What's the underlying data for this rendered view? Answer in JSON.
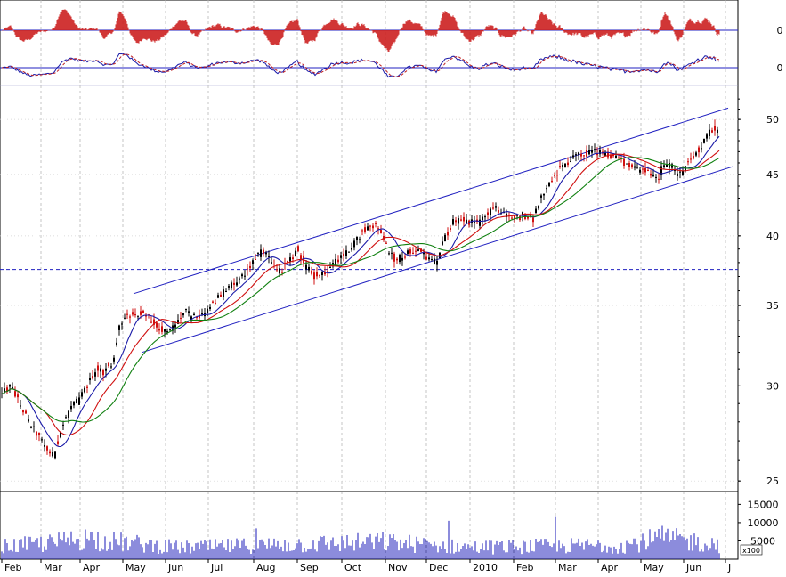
{
  "chart_data": {
    "type": "candlestick",
    "price_axis": {
      "scale": "log",
      "range": [
        24.5,
        53
      ],
      "ticks": [
        "50",
        "45",
        "40",
        "35",
        "30",
        "25"
      ]
    },
    "reference_line": 37.5,
    "osc1": {
      "zero_label": "0"
    },
    "osc2": {
      "zero_label": "0"
    },
    "volume_axis": {
      "range": [
        0,
        18500
      ],
      "ticks": [
        "15000",
        "10000",
        "5000"
      ],
      "unit": "x100"
    },
    "months": [
      {
        "label": "Feb",
        "t": 0
      },
      {
        "label": "Mar",
        "t": 44
      },
      {
        "label": "Apr",
        "t": 88
      },
      {
        "label": "May",
        "t": 136
      },
      {
        "label": "Jun",
        "t": 184
      },
      {
        "label": "Jul",
        "t": 232
      },
      {
        "label": "Aug",
        "t": 283
      },
      {
        "label": "Sep",
        "t": 332
      },
      {
        "label": "Oct",
        "t": 382
      },
      {
        "label": "Nov",
        "t": 431
      },
      {
        "label": "Dec",
        "t": 477
      },
      {
        "label": "2010",
        "t": 526
      },
      {
        "label": "Feb",
        "t": 575
      },
      {
        "label": "Mar",
        "t": 622
      },
      {
        "label": "Apr",
        "t": 670
      },
      {
        "label": "May",
        "t": 718
      },
      {
        "label": "Jun",
        "t": 766
      },
      {
        "label": "J",
        "t": 813
      }
    ],
    "price_keypoints": [
      [
        0,
        29.5
      ],
      [
        10,
        30.0
      ],
      [
        20,
        29.0
      ],
      [
        30,
        28.0
      ],
      [
        40,
        27.3
      ],
      [
        50,
        26.6
      ],
      [
        58,
        26.2
      ],
      [
        66,
        27.5
      ],
      [
        76,
        28.7
      ],
      [
        86,
        29.2
      ],
      [
        96,
        30.0
      ],
      [
        106,
        31.0
      ],
      [
        116,
        30.8
      ],
      [
        126,
        31.6
      ],
      [
        132,
        33.6
      ],
      [
        140,
        34.5
      ],
      [
        150,
        34.2
      ],
      [
        160,
        34.6
      ],
      [
        168,
        34.0
      ],
      [
        176,
        33.5
      ],
      [
        186,
        33.2
      ],
      [
        196,
        33.8
      ],
      [
        206,
        34.6
      ],
      [
        216,
        34.2
      ],
      [
        226,
        34.3
      ],
      [
        236,
        35.0
      ],
      [
        246,
        35.7
      ],
      [
        256,
        36.3
      ],
      [
        266,
        36.8
      ],
      [
        276,
        37.5
      ],
      [
        286,
        38.5
      ],
      [
        294,
        38.8
      ],
      [
        302,
        38.0
      ],
      [
        312,
        37.4
      ],
      [
        322,
        37.9
      ],
      [
        332,
        39.0
      ],
      [
        342,
        37.6
      ],
      [
        352,
        37.0
      ],
      [
        362,
        37.3
      ],
      [
        372,
        38.0
      ],
      [
        382,
        38.5
      ],
      [
        392,
        39.0
      ],
      [
        402,
        40.0
      ],
      [
        410,
        40.6
      ],
      [
        418,
        40.9
      ],
      [
        426,
        40.3
      ],
      [
        434,
        38.8
      ],
      [
        442,
        38.2
      ],
      [
        452,
        38.6
      ],
      [
        462,
        38.8
      ],
      [
        472,
        38.9
      ],
      [
        480,
        38.2
      ],
      [
        488,
        38.0
      ],
      [
        496,
        39.6
      ],
      [
        506,
        41.0
      ],
      [
        516,
        41.3
      ],
      [
        526,
        41.1
      ],
      [
        536,
        41.0
      ],
      [
        546,
        41.8
      ],
      [
        556,
        42.1
      ],
      [
        566,
        41.7
      ],
      [
        576,
        41.4
      ],
      [
        586,
        41.6
      ],
      [
        596,
        41.1
      ],
      [
        606,
        43.1
      ],
      [
        616,
        44.2
      ],
      [
        626,
        45.4
      ],
      [
        636,
        46.1
      ],
      [
        646,
        46.6
      ],
      [
        656,
        46.8
      ],
      [
        666,
        47.0
      ],
      [
        676,
        46.9
      ],
      [
        686,
        46.5
      ],
      [
        696,
        46.2
      ],
      [
        706,
        45.8
      ],
      [
        716,
        45.6
      ],
      [
        726,
        45.3
      ],
      [
        736,
        44.4
      ],
      [
        744,
        46.1
      ],
      [
        752,
        45.9
      ],
      [
        760,
        44.9
      ],
      [
        768,
        45.7
      ],
      [
        776,
        46.5
      ],
      [
        786,
        47.6
      ],
      [
        796,
        49.0
      ],
      [
        806,
        49.2
      ]
    ],
    "volume_keypoints": [
      [
        0,
        3800
      ],
      [
        60,
        5000
      ],
      [
        95,
        6500
      ],
      [
        130,
        5200
      ],
      [
        200,
        3500
      ],
      [
        300,
        4300
      ],
      [
        430,
        5200
      ],
      [
        520,
        3600
      ],
      [
        600,
        3900
      ],
      [
        700,
        4300
      ],
      [
        740,
        6400
      ],
      [
        806,
        4500
      ]
    ],
    "channel_lines": [
      {
        "from": [
          148,
          35.8
        ],
        "to": [
          816,
          51.1
        ]
      },
      {
        "from": [
          158,
          32.0
        ],
        "to": [
          822,
          45.7
        ]
      }
    ]
  }
}
